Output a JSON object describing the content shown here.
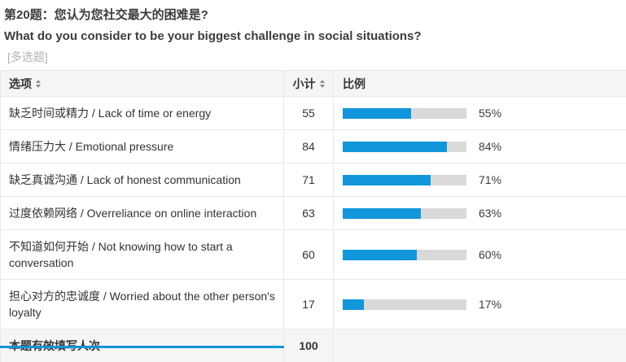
{
  "page": {
    "question_number_title": "第20题：您认为您社交最大的困难是?",
    "question_title_en": "What do you consider to be your biggest challenge in social situations?",
    "question_type_tag": "[多选题]"
  },
  "table": {
    "headers": {
      "option": "选项",
      "subtotal": "小计",
      "ratio": "比例"
    },
    "rows": [
      {
        "option": "缺乏时间或精力 / Lack of time or energy",
        "subtotal": "55",
        "percent": 55,
        "percent_label": "55%"
      },
      {
        "option": "情绪压力大 / Emotional pressure",
        "subtotal": "84",
        "percent": 84,
        "percent_label": "84%"
      },
      {
        "option": "缺乏真诚沟通 / Lack of honest communication",
        "subtotal": "71",
        "percent": 71,
        "percent_label": "71%"
      },
      {
        "option": "过度依赖网络 / Overreliance on online interaction",
        "subtotal": "63",
        "percent": 63,
        "percent_label": "63%"
      },
      {
        "option": "不知道如何开始 / Not knowing how to start a conversation",
        "subtotal": "60",
        "percent": 60,
        "percent_label": "60%"
      },
      {
        "option": "担心对方的忠诚度 / Worried about the other person's loyalty",
        "subtotal": "17",
        "percent": 17,
        "percent_label": "17%"
      }
    ],
    "footer": {
      "label": "本题有效填写人次",
      "value": "100"
    }
  },
  "chart_data": {
    "type": "bar",
    "title": "第20题：您认为您社交最大的困难是? / What do you consider to be your biggest challenge in social situations?",
    "categories": [
      "缺乏时间或精力 / Lack of time or energy",
      "情绪压力大 / Emotional pressure",
      "缺乏真诚沟通 / Lack of honest communication",
      "过度依赖网络 / Overreliance on online interaction",
      "不知道如何开始 / Not knowing how to start a conversation",
      "担心对方的忠诚度 / Worried about the other person's loyalty"
    ],
    "series": [
      {
        "name": "小计",
        "values": [
          55,
          84,
          71,
          63,
          60,
          17
        ]
      },
      {
        "name": "比例(%)",
        "values": [
          55,
          84,
          71,
          63,
          60,
          17
        ]
      }
    ],
    "valid_responses": 100,
    "xlabel": "",
    "ylabel": "比例",
    "ylim": [
      0,
      100
    ],
    "legend_position": "none",
    "grid": false
  },
  "colors": {
    "bar_fill": "#1296db",
    "bar_track": "#d9d9d9",
    "header_bg": "#f5f5f5",
    "border": "#e8e8e8",
    "accent_strip": "#1296db"
  }
}
